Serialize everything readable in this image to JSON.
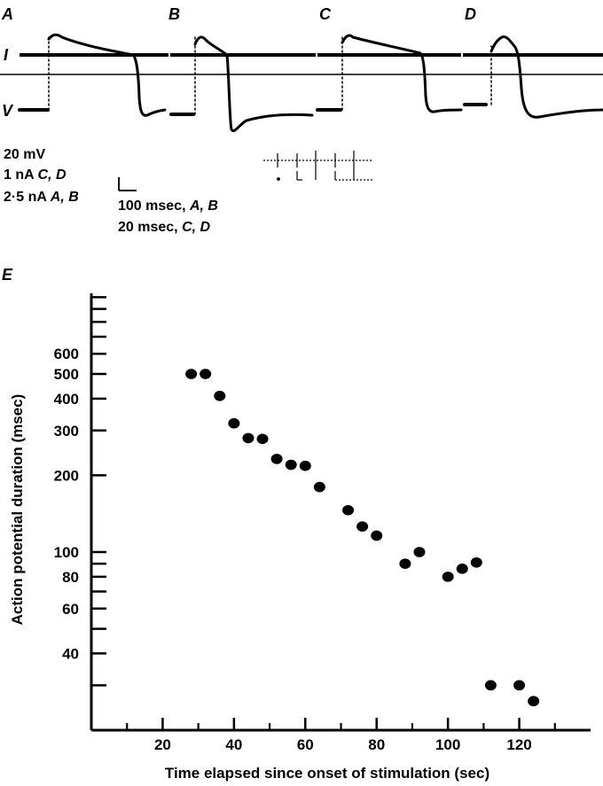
{
  "traces": {
    "panels": [
      "A",
      "B",
      "C",
      "D"
    ],
    "row_labels": {
      "current": "I",
      "voltage": "V"
    }
  },
  "calibration": {
    "voltage": "20 mV",
    "current_cd": {
      "value": "1 nA",
      "panels": "C, D"
    },
    "current_ab": {
      "value": "2·5 nA",
      "panels": "A, B"
    },
    "time_ab": {
      "value": "100 msec,",
      "panels": "A, B"
    },
    "time_cd": {
      "value": "20 msec,",
      "panels": "C, D"
    }
  },
  "chart_data": {
    "type": "scatter",
    "panel_label": "E",
    "xlabel": "Time elapsed since onset of stimulation (sec)",
    "ylabel": "Action potential duration (msec)",
    "x_scale": "linear",
    "y_scale": "log",
    "xlim": [
      0,
      140
    ],
    "ylim": [
      20,
      1000
    ],
    "x_ticks": [
      20,
      40,
      60,
      80,
      100,
      120
    ],
    "y_tick_labels": [
      40,
      60,
      80,
      100,
      200,
      300,
      400,
      500,
      600
    ],
    "y_minor_ticks": [
      20,
      30,
      50,
      70,
      90,
      700,
      800,
      900,
      1000
    ],
    "grid": false,
    "points": [
      {
        "x": 28,
        "y": 500
      },
      {
        "x": 32,
        "y": 500
      },
      {
        "x": 36,
        "y": 410
      },
      {
        "x": 40,
        "y": 320
      },
      {
        "x": 44,
        "y": 280
      },
      {
        "x": 48,
        "y": 278
      },
      {
        "x": 52,
        "y": 232
      },
      {
        "x": 56,
        "y": 220
      },
      {
        "x": 60,
        "y": 218
      },
      {
        "x": 64,
        "y": 180
      },
      {
        "x": 72,
        "y": 146
      },
      {
        "x": 76,
        "y": 126
      },
      {
        "x": 80,
        "y": 116
      },
      {
        "x": 88,
        "y": 90
      },
      {
        "x": 92,
        "y": 100
      },
      {
        "x": 100,
        "y": 80
      },
      {
        "x": 104,
        "y": 86
      },
      {
        "x": 108,
        "y": 91
      },
      {
        "x": 112,
        "y": 30
      },
      {
        "x": 120,
        "y": 30
      },
      {
        "x": 124,
        "y": 26
      }
    ]
  }
}
